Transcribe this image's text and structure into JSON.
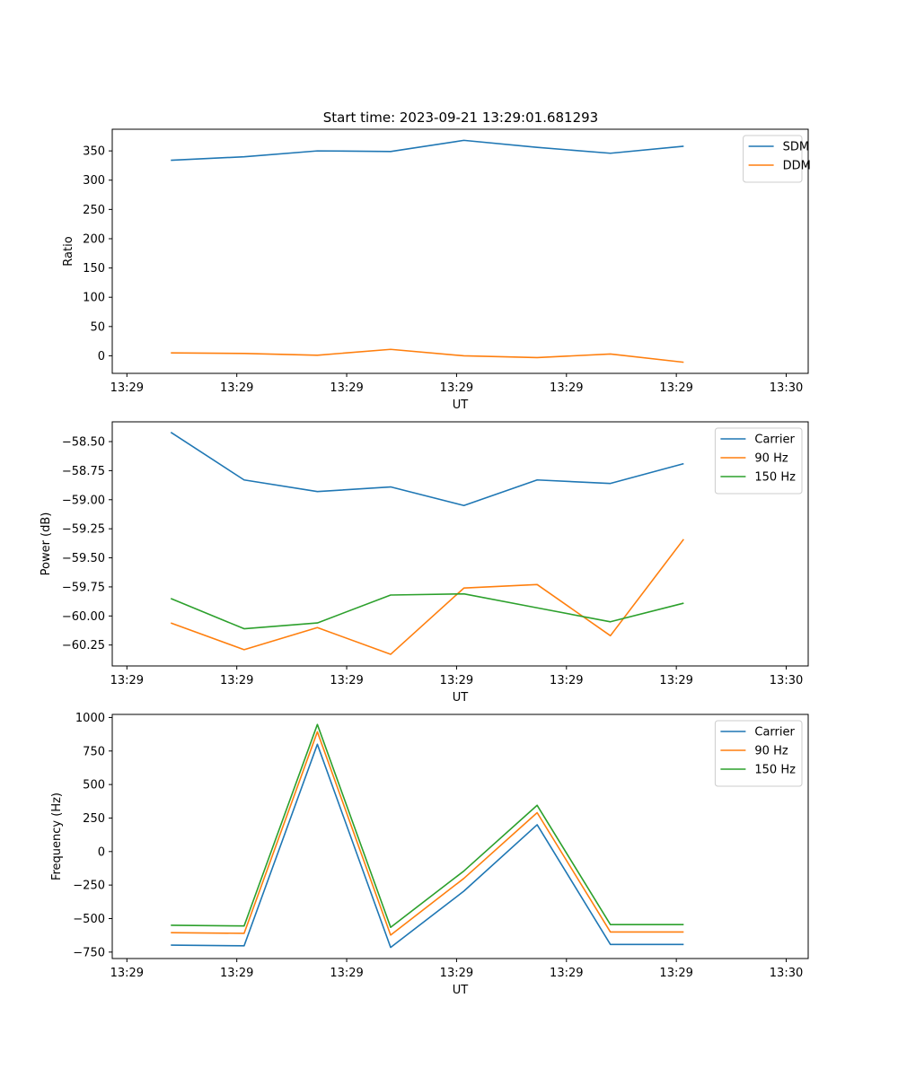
{
  "figure_title": "Start time: 2023-09-21 13:29:01.681293",
  "chart_data": [
    {
      "type": "line",
      "title": "Start time: 2023-09-21 13:29:01.681293",
      "xlabel": "UT",
      "ylabel": "Ratio",
      "x": [
        1,
        2,
        3,
        4,
        5,
        6,
        7,
        8
      ],
      "xlim": [
        0.2,
        9.7
      ],
      "xticks": [
        0.4,
        1.9,
        3.4,
        4.9,
        6.4,
        7.9,
        9.4
      ],
      "xtick_labels": [
        "13:29",
        "13:29",
        "13:29",
        "13:29",
        "13:29",
        "13:29",
        "13:30"
      ],
      "ylim": [
        -30,
        387
      ],
      "yticks": [
        0,
        50,
        100,
        150,
        200,
        250,
        300,
        350
      ],
      "ytick_labels": [
        "0",
        "50",
        "100",
        "150",
        "200",
        "250",
        "300",
        "350"
      ],
      "legend": "top-right",
      "series": [
        {
          "name": "SDM",
          "color": "#1f77b4",
          "values": [
            334,
            340,
            350,
            349,
            368,
            356,
            346,
            358
          ]
        },
        {
          "name": "DDM",
          "color": "#ff7f0e",
          "values": [
            5,
            4,
            1,
            11,
            0,
            -3,
            3,
            -11
          ]
        }
      ]
    },
    {
      "type": "line",
      "title": "",
      "xlabel": "UT",
      "ylabel": "Power (dB)",
      "x": [
        1,
        2,
        3,
        4,
        5,
        6,
        7,
        8
      ],
      "xlim": [
        0.2,
        9.7
      ],
      "xticks": [
        0.4,
        1.9,
        3.4,
        4.9,
        6.4,
        7.9,
        9.4
      ],
      "xtick_labels": [
        "13:29",
        "13:29",
        "13:29",
        "13:29",
        "13:29",
        "13:29",
        "13:30"
      ],
      "ylim": [
        -60.43,
        -58.33
      ],
      "yticks": [
        -60.25,
        -60.0,
        -59.75,
        -59.5,
        -59.25,
        -59.0,
        -58.75,
        -58.5
      ],
      "ytick_labels": [
        "−60.25",
        "−60.00",
        "−59.75",
        "−59.50",
        "−59.25",
        "−59.00",
        "−58.75",
        "−58.50"
      ],
      "legend": "top-right",
      "series": [
        {
          "name": "Carrier",
          "color": "#1f77b4",
          "values": [
            -58.42,
            -58.83,
            -58.93,
            -58.89,
            -59.05,
            -58.83,
            -58.86,
            -58.69
          ]
        },
        {
          "name": "90 Hz",
          "color": "#ff7f0e",
          "values": [
            -60.06,
            -60.29,
            -60.1,
            -60.33,
            -59.76,
            -59.73,
            -60.17,
            -59.34
          ]
        },
        {
          "name": "150 Hz",
          "color": "#2ca02c",
          "values": [
            -59.85,
            -60.11,
            -60.06,
            -59.82,
            -59.81,
            -59.93,
            -60.05,
            -59.89
          ]
        }
      ]
    },
    {
      "type": "line",
      "title": "",
      "xlabel": "UT",
      "ylabel": "Frequency (Hz)",
      "x": [
        1,
        2,
        3,
        4,
        5,
        6,
        7,
        8
      ],
      "xlim": [
        0.2,
        9.7
      ],
      "xticks": [
        0.4,
        1.9,
        3.4,
        4.9,
        6.4,
        7.9,
        9.4
      ],
      "xtick_labels": [
        "13:29",
        "13:29",
        "13:29",
        "13:29",
        "13:29",
        "13:29",
        "13:30"
      ],
      "ylim": [
        -798,
        1023
      ],
      "yticks": [
        -750,
        -500,
        -250,
        0,
        250,
        500,
        750,
        1000
      ],
      "ytick_labels": [
        "−750",
        "−500",
        "−250",
        "0",
        "250",
        "500",
        "750",
        "1000"
      ],
      "legend": "top-right",
      "series": [
        {
          "name": "Carrier",
          "color": "#1f77b4",
          "values": [
            -698,
            -703,
            800,
            -715,
            -295,
            200,
            -693,
            -693
          ]
        },
        {
          "name": "90 Hz",
          "color": "#ff7f0e",
          "values": [
            -605,
            -610,
            893,
            -623,
            -200,
            290,
            -600,
            -600
          ]
        },
        {
          "name": "150 Hz",
          "color": "#2ca02c",
          "values": [
            -550,
            -555,
            948,
            -565,
            -145,
            345,
            -545,
            -545
          ]
        }
      ]
    }
  ]
}
